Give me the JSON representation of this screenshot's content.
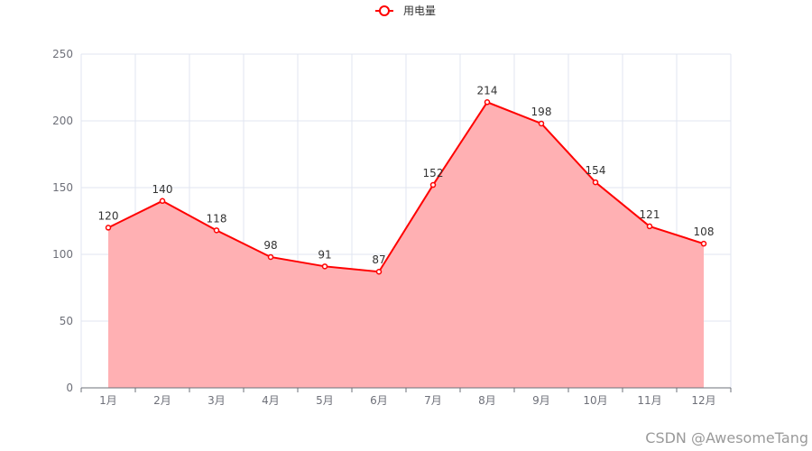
{
  "chart_data": {
    "type": "area",
    "categories": [
      "1月",
      "2月",
      "3月",
      "4月",
      "5月",
      "6月",
      "7月",
      "8月",
      "9月",
      "10月",
      "11月",
      "12月"
    ],
    "series": [
      {
        "name": "用电量",
        "values": [
          120,
          140,
          118,
          98,
          91,
          87,
          152,
          214,
          198,
          154,
          121,
          108
        ]
      }
    ],
    "title": "",
    "xlabel": "",
    "ylabel": "",
    "ylim": [
      0,
      250
    ],
    "yticks": [
      0,
      50,
      100,
      150,
      200,
      250
    ],
    "grid": true,
    "legend": "top-center",
    "data_labels": true,
    "colors": {
      "line": "#ff0000",
      "area": "#ffb0b3",
      "grid": "#e0e6f1",
      "axis": "#6e7079"
    }
  },
  "watermark": {
    "text": "CSDN @AwesomeTang"
  }
}
